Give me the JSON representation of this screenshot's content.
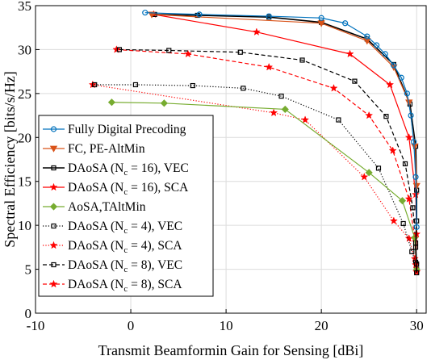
{
  "chart_data": {
    "type": "line",
    "title": "",
    "xlabel": "Transmit Beamformin Gain for Sensing [dBi]",
    "ylabel": "Spectral Efficiency [bits/s/Hz]",
    "xlim": [
      -10,
      31
    ],
    "ylim": [
      0,
      35
    ],
    "xticks": [
      -10,
      0,
      10,
      20,
      30
    ],
    "yticks": [
      0,
      5,
      10,
      15,
      20,
      25,
      30,
      35
    ],
    "xtick_labels": [
      "-10",
      "0",
      "10",
      "20",
      "30"
    ],
    "ytick_labels": [
      "0",
      "5",
      "10",
      "15",
      "20",
      "25",
      "30",
      "35"
    ],
    "grid": true,
    "legend_position": "left",
    "series": [
      {
        "name": "Fully Digital Precoding",
        "color": "#0072BD",
        "dash": "solid",
        "marker": "circle-open",
        "x": [
          1.5,
          7.2,
          14.5,
          20.0,
          22.5,
          24.8,
          25.8,
          26.7,
          27.6,
          28.4,
          29.0,
          29.4,
          29.7,
          29.9,
          30.0
        ],
        "y": [
          34.2,
          34.0,
          33.8,
          33.6,
          33.0,
          31.5,
          30.5,
          29.5,
          28.2,
          26.8,
          25.0,
          22.5,
          19.5,
          15.5,
          9.8
        ]
      },
      {
        "name": "FC, PE-AltMin",
        "color": "#D95319",
        "dash": "solid",
        "marker": "triangle-down",
        "x": [
          2.2,
          20.0,
          24.8,
          27.6,
          29.2,
          29.8,
          30.0
        ],
        "y": [
          34.0,
          33.0,
          31.0,
          28.0,
          24.0,
          19.0,
          14.5
        ]
      },
      {
        "name": "DAoSA (N_c = 16), VEC",
        "color": "#000000",
        "dash": "solid",
        "marker": "square-open",
        "x": [
          2.5,
          7.0,
          14.5,
          20.0,
          24.8,
          27.6,
          29.3,
          29.9,
          30.0,
          30.0,
          29.9,
          30.0,
          30.0
        ],
        "y": [
          34.0,
          33.9,
          33.7,
          33.1,
          31.2,
          28.3,
          23.8,
          19.0,
          14.0,
          10.5,
          7.5,
          5.6,
          4.6
        ]
      },
      {
        "name": "DAoSA (N_c = 16), SCA",
        "color": "#FF0000",
        "dash": "solid",
        "marker": "star",
        "x": [
          2.4,
          13.2,
          23.0,
          27.2,
          29.2,
          29.9,
          30.0,
          29.9,
          30.0
        ],
        "y": [
          34.0,
          32.0,
          29.5,
          26.0,
          20.0,
          13.5,
          9.0,
          5.5,
          4.7
        ]
      },
      {
        "name": "AoSA,TAltMin",
        "color": "#77AC30",
        "dash": "solid",
        "marker": "diamond",
        "x": [
          -2.0,
          3.5,
          16.2,
          25.0,
          28.5,
          29.8,
          30.0
        ],
        "y": [
          24.0,
          23.9,
          23.2,
          16.0,
          12.8,
          8.6,
          5.0
        ]
      },
      {
        "name": "DAoSA (N_c = 4), VEC",
        "color": "#000000",
        "dash": "dotted",
        "marker": "square-open",
        "x": [
          -3.8,
          0.5,
          6.5,
          11.8,
          15.8,
          21.8,
          26.0,
          28.6,
          29.5,
          29.9,
          30.0
        ],
        "y": [
          26.0,
          26.0,
          25.9,
          25.6,
          24.7,
          22.0,
          16.5,
          10.2,
          7.0,
          5.8,
          4.8
        ]
      },
      {
        "name": "DAoSA (N_c = 4), SCA",
        "color": "#FF0000",
        "dash": "dotted",
        "marker": "star",
        "x": [
          -4.0,
          15.0,
          18.3,
          24.5,
          27.6,
          29.2,
          29.8,
          30.0
        ],
        "y": [
          26.0,
          22.8,
          22.0,
          15.5,
          10.5,
          8.5,
          6.2,
          4.7
        ]
      },
      {
        "name": "DAoSA (N_c = 8), VEC",
        "color": "#000000",
        "dash": "dashed",
        "marker": "square-open",
        "x": [
          -1.2,
          4.0,
          11.5,
          18.0,
          23.5,
          26.8,
          28.8,
          29.6,
          29.9,
          30.0
        ],
        "y": [
          30.0,
          29.9,
          29.7,
          28.8,
          26.4,
          22.4,
          17.0,
          12.0,
          8.0,
          5.0
        ]
      },
      {
        "name": "DAoSA (N_c = 8), SCA",
        "color": "#FF0000",
        "dash": "dashed",
        "marker": "star",
        "x": [
          -1.5,
          6.0,
          14.5,
          21.3,
          25.0,
          27.5,
          29.2,
          29.8,
          30.0
        ],
        "y": [
          30.0,
          29.5,
          28.0,
          25.6,
          22.5,
          18.5,
          13.0,
          8.5,
          4.7
        ]
      }
    ],
    "legend": [
      {
        "prefix": "Fully Digital Precoding",
        "sub": "",
        "suffix": ""
      },
      {
        "prefix": "FC, PE-AltMin",
        "sub": "",
        "suffix": ""
      },
      {
        "prefix": "DAoSA (N",
        "sub": "c",
        "suffix": " = 16), VEC"
      },
      {
        "prefix": "DAoSA (N",
        "sub": "c",
        "suffix": " = 16), SCA"
      },
      {
        "prefix": "AoSA,TAltMin",
        "sub": "",
        "suffix": ""
      },
      {
        "prefix": "DAoSA (N",
        "sub": "c",
        "suffix": " = 4), VEC"
      },
      {
        "prefix": "DAoSA (N",
        "sub": "c",
        "suffix": " = 4), SCA"
      },
      {
        "prefix": "DAoSA (N",
        "sub": "c",
        "suffix": " = 8), VEC"
      },
      {
        "prefix": "DAoSA (N",
        "sub": "c",
        "suffix": " = 8), SCA"
      }
    ]
  }
}
